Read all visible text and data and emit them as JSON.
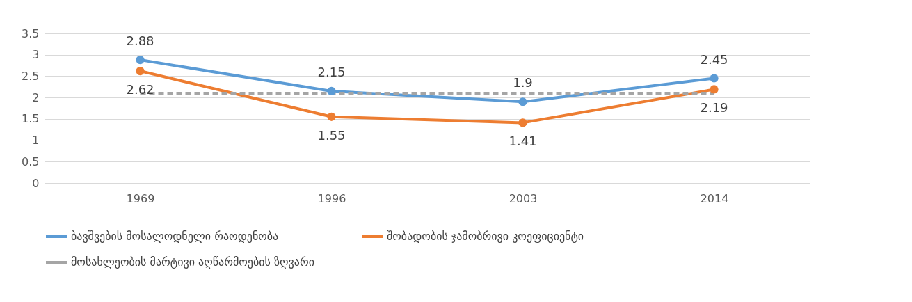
{
  "chart_data": {
    "type": "line",
    "categories": [
      "1969",
      "1996",
      "2003",
      "2014"
    ],
    "series": [
      {
        "name": "ბავშვების მოსალოდნელი რაოდენობა",
        "color": "#5b9bd5",
        "values": [
          2.88,
          2.15,
          1.9,
          2.45
        ],
        "value_labels": [
          "2.88",
          "2.15",
          "1.9",
          "2.45"
        ],
        "marker": "circle",
        "line_style": "solid"
      },
      {
        "name": "შობადობის ჯამობრივი კოეფიციენტი",
        "color": "#ed7d31",
        "values": [
          2.62,
          1.55,
          1.41,
          2.19
        ],
        "value_labels": [
          "2.62",
          "1.55",
          "1.41",
          "2.19"
        ],
        "marker": "circle",
        "line_style": "solid"
      },
      {
        "name": "მოსახლეობის მარტივი აღწარმოების ზღვარი",
        "color": "#a5a5a5",
        "values": [
          2.1,
          2.1,
          2.1,
          2.1
        ],
        "marker": "none",
        "line_style": "dashed"
      }
    ],
    "ylim": [
      0,
      3.5
    ],
    "yticks": [
      0,
      0.5,
      1,
      1.5,
      2,
      2.5,
      3,
      3.5
    ],
    "grid": "y",
    "legend": "bottom"
  }
}
